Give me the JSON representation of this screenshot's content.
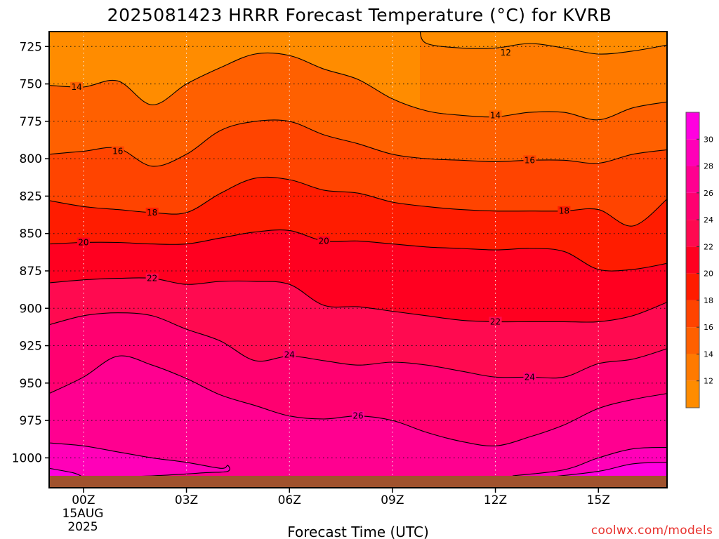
{
  "chart_data": {
    "type": "contour",
    "title": "2025081423 HRRR Forecast Temperature (°C) for KVRB",
    "xlabel": "Forecast Time (UTC)",
    "credit": "coolwx.com/models",
    "x_range_hours": [
      -1,
      17
    ],
    "y_range_hpa": [
      715,
      1020
    ],
    "y_axis": {
      "reversed": true,
      "ticks": [
        725,
        750,
        775,
        800,
        825,
        850,
        875,
        900,
        925,
        950,
        975,
        1000
      ],
      "tick_labels": [
        "725",
        "750",
        "775",
        "800",
        "825",
        "850",
        "875",
        "900",
        "925",
        "950",
        "975",
        "1000"
      ],
      "grid": "dotted"
    },
    "x_axis": {
      "ticks": [
        0,
        3,
        6,
        9,
        12,
        15
      ],
      "tick_labels": [
        "00Z",
        "03Z",
        "06Z",
        "09Z",
        "12Z",
        "15Z"
      ],
      "date_line_1": "15AUG",
      "date_line_2": "2025",
      "grid": "dotted"
    },
    "ground_level_hpa": 1012,
    "ground_color": "#a0522d",
    "colorbar": {
      "levels": [
        10,
        12,
        14,
        16,
        18,
        20,
        22,
        24,
        26,
        28,
        30,
        32
      ],
      "labels": [
        "12",
        "14",
        "16",
        "18",
        "20",
        "22",
        "24",
        "26",
        "28",
        "30"
      ],
      "colors": [
        "#ff8c00",
        "#ff7a00",
        "#ff6000",
        "#ff4400",
        "#ff1c00",
        "#ff0020",
        "#ff0a50",
        "#ff0070",
        "#ff0090",
        "#ff00b8",
        "#ff00e0"
      ]
    },
    "contour_interval": 2,
    "contours": [
      {
        "level": 12,
        "label": "12",
        "label_at": [
          12.3,
          729
        ],
        "points": [
          [
            9.8,
            715
          ],
          [
            10.0,
            723
          ],
          [
            11.0,
            726
          ],
          [
            12.0,
            726
          ],
          [
            13.0,
            723
          ],
          [
            14.0,
            726
          ],
          [
            15.0,
            730
          ],
          [
            16.0,
            728
          ],
          [
            17.0,
            724
          ]
        ]
      },
      {
        "level": 14,
        "label": "14",
        "label_at": [
          -0.2,
          752
        ],
        "points": [
          [
            -1.0,
            751
          ],
          [
            0.0,
            752
          ],
          [
            1.0,
            748
          ],
          [
            2.0,
            764
          ],
          [
            3.0,
            750
          ],
          [
            4.0,
            739
          ],
          [
            5.0,
            730
          ],
          [
            6.0,
            731
          ],
          [
            7.0,
            740
          ],
          [
            8.0,
            747
          ],
          [
            9.0,
            760
          ],
          [
            10.0,
            768
          ],
          [
            11.0,
            771
          ],
          [
            12.0,
            772
          ],
          [
            13.0,
            769
          ],
          [
            14.0,
            769
          ],
          [
            15.0,
            774
          ],
          [
            16.0,
            766
          ],
          [
            17.0,
            762
          ]
        ]
      },
      {
        "level": 14,
        "label": "14",
        "label_at": [
          12.0,
          771
        ],
        "points": []
      },
      {
        "level": 16,
        "label": "16",
        "label_at": [
          1.0,
          795
        ],
        "points": [
          [
            -1.0,
            797
          ],
          [
            0.0,
            795
          ],
          [
            1.0,
            793
          ],
          [
            2.0,
            805
          ],
          [
            3.0,
            797
          ],
          [
            4.0,
            781
          ],
          [
            5.0,
            775
          ],
          [
            6.0,
            775
          ],
          [
            7.0,
            784
          ],
          [
            8.0,
            790
          ],
          [
            9.0,
            797
          ],
          [
            10.0,
            800
          ],
          [
            11.0,
            801
          ],
          [
            12.0,
            802
          ],
          [
            13.0,
            801
          ],
          [
            14.0,
            801
          ],
          [
            15.0,
            803
          ],
          [
            16.0,
            797
          ],
          [
            17.0,
            794
          ]
        ]
      },
      {
        "level": 16,
        "label": "16",
        "label_at": [
          13.0,
          801
        ],
        "points": []
      },
      {
        "level": 18,
        "label": "18",
        "label_at": [
          2.0,
          836
        ],
        "points": [
          [
            -1.0,
            828
          ],
          [
            0.0,
            832
          ],
          [
            1.0,
            834
          ],
          [
            2.0,
            836
          ],
          [
            3.0,
            836
          ],
          [
            4.0,
            823
          ],
          [
            5.0,
            813
          ],
          [
            6.0,
            814
          ],
          [
            7.0,
            821
          ],
          [
            8.0,
            823
          ],
          [
            9.0,
            829
          ],
          [
            10.0,
            832
          ],
          [
            11.0,
            834
          ],
          [
            12.0,
            835
          ],
          [
            13.0,
            835
          ],
          [
            14.0,
            835
          ],
          [
            15.0,
            834
          ],
          [
            16.0,
            845
          ],
          [
            17.0,
            827
          ]
        ]
      },
      {
        "level": 18,
        "label": "18",
        "label_at": [
          14.0,
          835
        ],
        "points": []
      },
      {
        "level": 20,
        "label": "20",
        "label_at": [
          0.0,
          856
        ],
        "points": [
          [
            -1.0,
            857
          ],
          [
            0.0,
            856
          ],
          [
            1.0,
            856
          ],
          [
            2.0,
            857
          ],
          [
            3.0,
            857
          ],
          [
            4.0,
            853
          ],
          [
            5.0,
            849
          ],
          [
            6.0,
            848
          ],
          [
            7.0,
            855
          ],
          [
            8.0,
            855
          ],
          [
            9.0,
            857
          ],
          [
            10.0,
            859
          ],
          [
            11.0,
            860
          ],
          [
            12.0,
            861
          ],
          [
            13.0,
            860
          ],
          [
            14.0,
            862
          ],
          [
            15.0,
            874
          ],
          [
            16.0,
            874
          ],
          [
            17.0,
            870
          ]
        ]
      },
      {
        "level": 20,
        "label": "20",
        "label_at": [
          7.0,
          855
        ],
        "points": []
      },
      {
        "level": 22,
        "label": "22",
        "label_at": [
          2.0,
          880
        ],
        "points": [
          [
            -1.0,
            883
          ],
          [
            0.0,
            881
          ],
          [
            1.0,
            880
          ],
          [
            2.0,
            880
          ],
          [
            3.0,
            884
          ],
          [
            4.0,
            882
          ],
          [
            5.0,
            882
          ],
          [
            6.0,
            884
          ],
          [
            7.0,
            898
          ],
          [
            8.0,
            899
          ],
          [
            9.0,
            902
          ],
          [
            10.0,
            905
          ],
          [
            11.0,
            908
          ],
          [
            12.0,
            909
          ],
          [
            13.0,
            909
          ],
          [
            14.0,
            909
          ],
          [
            15.0,
            909
          ],
          [
            16.0,
            905
          ],
          [
            17.0,
            896
          ]
        ]
      },
      {
        "level": 22,
        "label": "22",
        "label_at": [
          12.0,
          909
        ],
        "points": []
      },
      {
        "level": 24,
        "label": "24",
        "label_at": [
          6.0,
          931
        ],
        "points": [
          [
            -1.0,
            911
          ],
          [
            0.0,
            905
          ],
          [
            1.0,
            903
          ],
          [
            2.0,
            905
          ],
          [
            3.0,
            914
          ],
          [
            4.0,
            922
          ],
          [
            5.0,
            935
          ],
          [
            6.0,
            932
          ],
          [
            7.0,
            935
          ],
          [
            8.0,
            938
          ],
          [
            9.0,
            936
          ],
          [
            10.0,
            938
          ],
          [
            11.0,
            942
          ],
          [
            12.0,
            946
          ],
          [
            13.0,
            946
          ],
          [
            14.0,
            946
          ],
          [
            15.0,
            937
          ],
          [
            16.0,
            934
          ],
          [
            17.0,
            927
          ]
        ]
      },
      {
        "level": 24,
        "label": "24",
        "label_at": [
          13.0,
          946
        ],
        "points": []
      },
      {
        "level": 26,
        "label": "26",
        "label_at": [
          8.0,
          972
        ],
        "points": [
          [
            -1.0,
            957
          ],
          [
            0.0,
            946
          ],
          [
            1.0,
            932
          ],
          [
            2.0,
            938
          ],
          [
            3.0,
            947
          ],
          [
            4.0,
            958
          ],
          [
            5.0,
            965
          ],
          [
            6.0,
            972
          ],
          [
            7.0,
            974
          ],
          [
            8.0,
            972
          ],
          [
            9.0,
            975
          ],
          [
            10.0,
            983
          ],
          [
            11.0,
            989
          ],
          [
            12.0,
            992
          ],
          [
            13.0,
            986
          ],
          [
            14.0,
            978
          ],
          [
            15.0,
            967
          ],
          [
            16.0,
            961
          ],
          [
            17.0,
            957
          ]
        ]
      },
      {
        "level": 28,
        "label": "",
        "points": [
          [
            -1.0,
            990
          ],
          [
            0.0,
            992
          ],
          [
            1.0,
            996
          ],
          [
            2.0,
            1000
          ],
          [
            3.0,
            1003
          ],
          [
            4.0,
            1007
          ],
          [
            4.2,
            1005
          ],
          [
            4.2,
            1009
          ],
          [
            3.5,
            1010
          ],
          [
            2.0,
            1012
          ],
          [
            0.0,
            1013
          ]
        ]
      },
      {
        "level": 28,
        "label": "",
        "points": [
          [
            12.5,
            1012
          ],
          [
            14.0,
            1008
          ],
          [
            15.0,
            1000
          ],
          [
            16.0,
            994
          ],
          [
            17.0,
            993
          ]
        ]
      },
      {
        "level": 30,
        "label": "",
        "points": [
          [
            -1.0,
            1007
          ],
          [
            -0.3,
            1010
          ],
          [
            0.0,
            1013
          ]
        ]
      },
      {
        "level": 30,
        "label": "",
        "points": [
          [
            13.5,
            1013
          ],
          [
            15.0,
            1009
          ],
          [
            16.0,
            1004
          ],
          [
            17.0,
            1003
          ]
        ]
      }
    ]
  }
}
